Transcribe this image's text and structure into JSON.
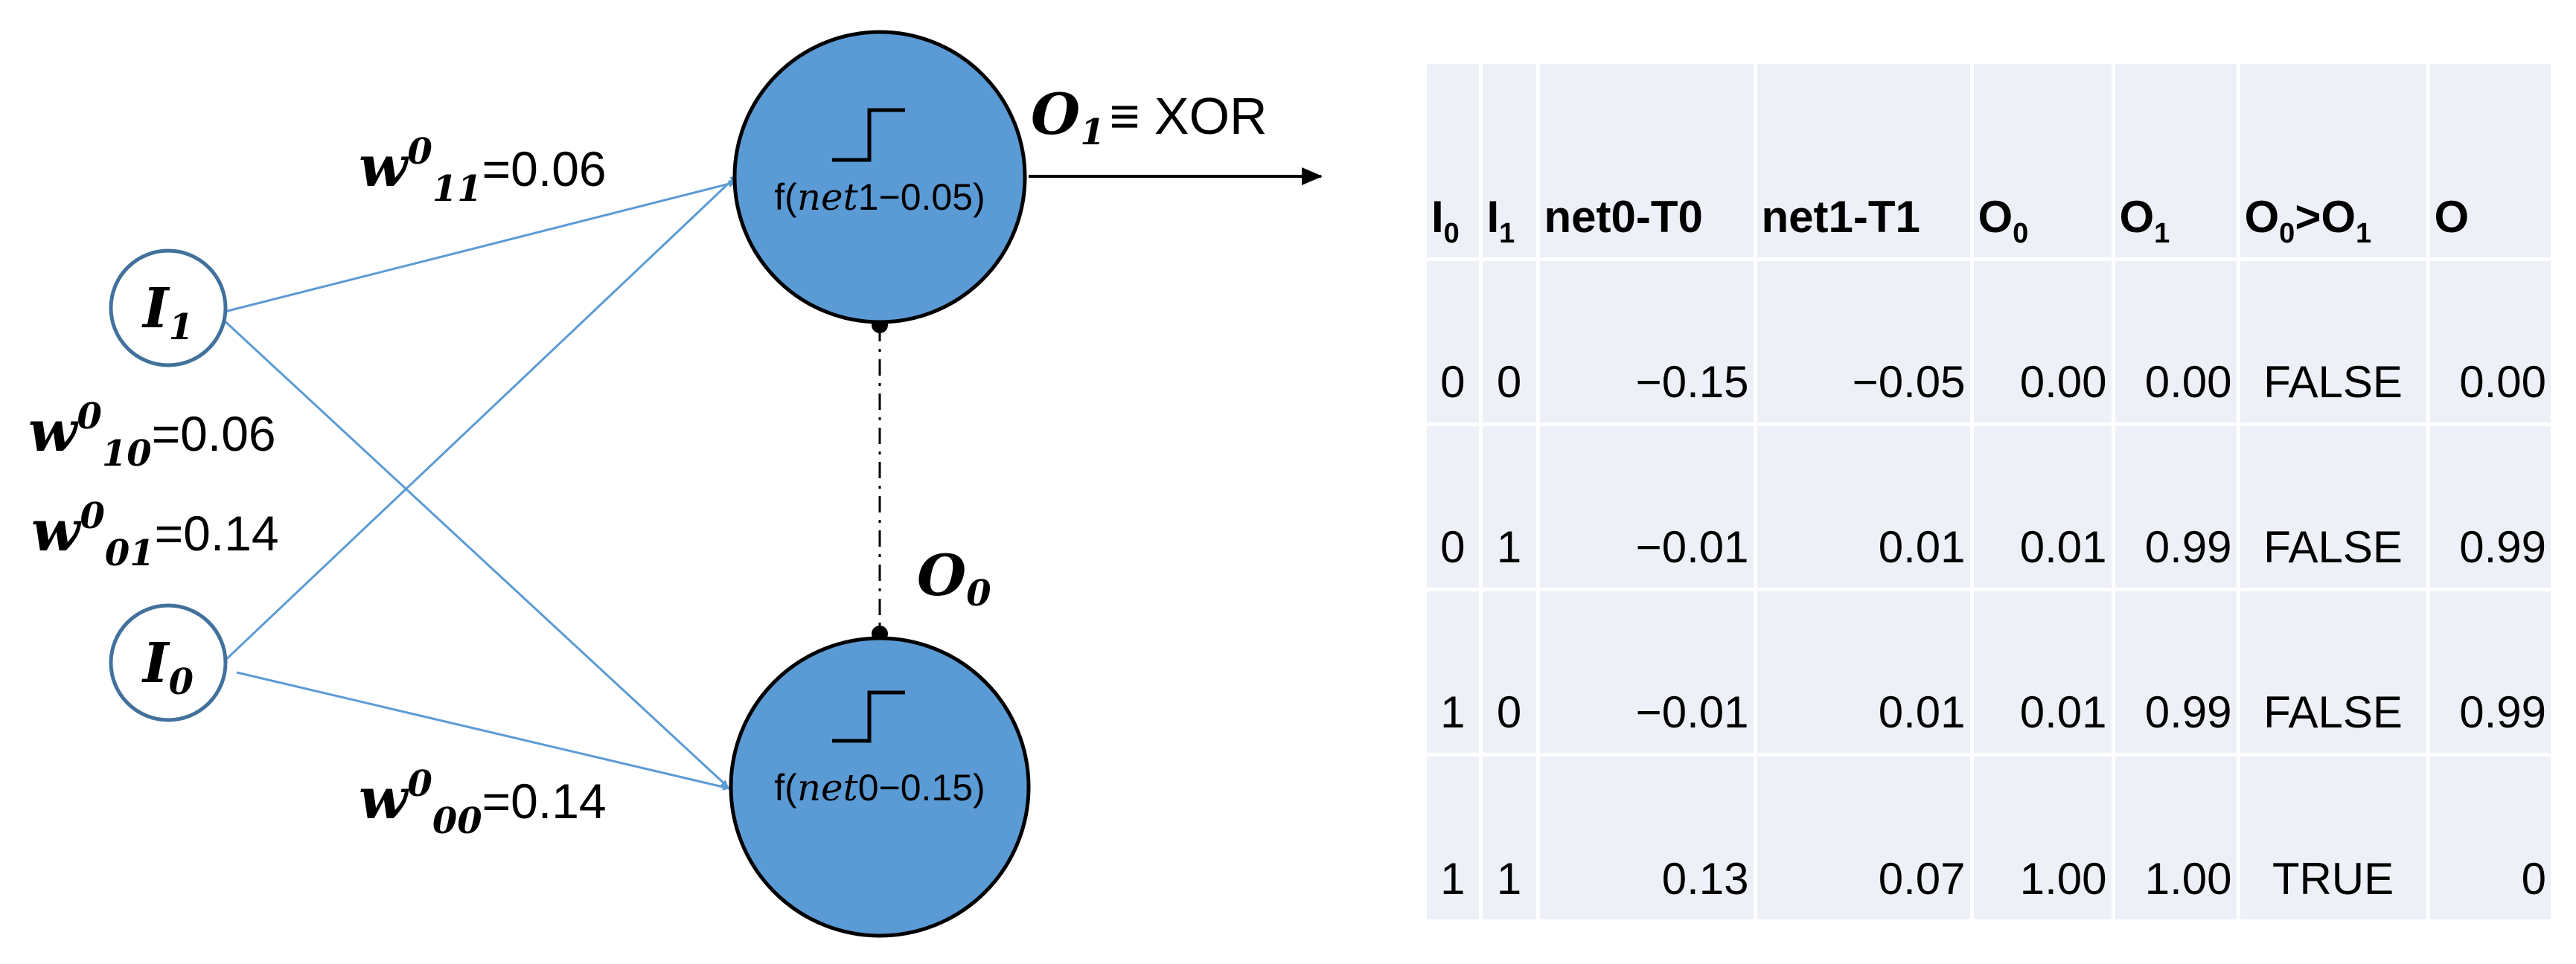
{
  "diagram": {
    "inputs": [
      {
        "symbol": "I",
        "sub": "1"
      },
      {
        "symbol": "I",
        "sub": "0"
      }
    ],
    "neurons": {
      "upper": {
        "func_prefix": "f(",
        "var": "net",
        "num": "1",
        "rest": "−0.05)"
      },
      "lower": {
        "func_prefix": "f(",
        "var": "net",
        "num": "0",
        "rest": "−0.15)"
      }
    },
    "weights": [
      {
        "sym": "w",
        "sup": "0",
        "sub": "11",
        "value": "=0.06"
      },
      {
        "sym": "w",
        "sup": "0",
        "sub": "10",
        "value": "=0.06"
      },
      {
        "sym": "w",
        "sup": "0",
        "sub": "01",
        "value": "=0.14"
      },
      {
        "sym": "w",
        "sup": "0",
        "sub": "00",
        "value": "=0.14"
      }
    ],
    "outputs": {
      "o1": {
        "sym": "O",
        "sub": "1",
        "suffix": "≡ XOR"
      },
      "o0": {
        "sym": "O",
        "sub": "0"
      }
    },
    "colors": {
      "neuron_fill": "#5b9bd5",
      "edge": "#5b9bd5",
      "table_bg": "#eef0f7"
    }
  },
  "table": {
    "headers": [
      {
        "main": "I",
        "sub": "0"
      },
      {
        "main": "I",
        "sub": "1"
      },
      {
        "main": "net0-T0",
        "sub": ""
      },
      {
        "main": "net1-T1",
        "sub": ""
      },
      {
        "main": "O",
        "sub": "0"
      },
      {
        "main": "O",
        "sub": "1"
      },
      {
        "main": "O",
        "sub": "0",
        "main2": ">O",
        "sub2": "1"
      },
      {
        "main": "O",
        "sub": ""
      }
    ],
    "rows": [
      [
        "0",
        "0",
        "−0.15",
        "−0.05",
        "0.00",
        "0.00",
        "FALSE",
        "0.00"
      ],
      [
        "0",
        "1",
        "−0.01",
        "0.01",
        "0.01",
        "0.99",
        "FALSE",
        "0.99"
      ],
      [
        "1",
        "0",
        "−0.01",
        "0.01",
        "0.01",
        "0.99",
        "FALSE",
        "0.99"
      ],
      [
        "1",
        "1",
        "0.13",
        "0.07",
        "1.00",
        "1.00",
        "TRUE",
        "0"
      ]
    ]
  }
}
